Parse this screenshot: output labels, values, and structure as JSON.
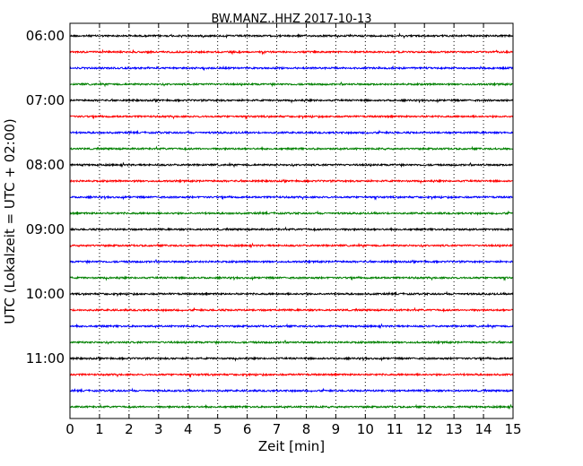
{
  "chart_data": {
    "type": "line",
    "title": "BW.MANZ..HHZ 2017-10-13",
    "xlabel": "Zeit  [min]",
    "ylabel": "UTC (Lokalzeit = UTC + 02:00)",
    "xlim": [
      0,
      15
    ],
    "x_ticks": [
      "0",
      "1",
      "2",
      "3",
      "4",
      "5",
      "6",
      "7",
      "8",
      "9",
      "10",
      "11",
      "12",
      "13",
      "14",
      "15"
    ],
    "y_ticks": [
      "06:00",
      "07:00",
      "08:00",
      "09:00",
      "10:00",
      "11:00"
    ],
    "grid": "vertical-dotted",
    "series_colors": [
      "#000000",
      "#ff0000",
      "#0000ff",
      "#008000"
    ],
    "traces": [
      {
        "start": "06:00",
        "color": "#000000"
      },
      {
        "start": "06:15",
        "color": "#ff0000"
      },
      {
        "start": "06:30",
        "color": "#0000ff"
      },
      {
        "start": "06:45",
        "color": "#008000"
      },
      {
        "start": "07:00",
        "color": "#000000"
      },
      {
        "start": "07:15",
        "color": "#ff0000"
      },
      {
        "start": "07:30",
        "color": "#0000ff"
      },
      {
        "start": "07:45",
        "color": "#008000"
      },
      {
        "start": "08:00",
        "color": "#000000"
      },
      {
        "start": "08:15",
        "color": "#ff0000"
      },
      {
        "start": "08:30",
        "color": "#0000ff"
      },
      {
        "start": "08:45",
        "color": "#008000"
      },
      {
        "start": "09:00",
        "color": "#000000"
      },
      {
        "start": "09:15",
        "color": "#ff0000"
      },
      {
        "start": "09:30",
        "color": "#0000ff"
      },
      {
        "start": "09:45",
        "color": "#008000"
      },
      {
        "start": "10:00",
        "color": "#000000"
      },
      {
        "start": "10:15",
        "color": "#ff0000"
      },
      {
        "start": "10:30",
        "color": "#0000ff"
      },
      {
        "start": "10:45",
        "color": "#008000"
      },
      {
        "start": "11:00",
        "color": "#000000"
      },
      {
        "start": "11:15",
        "color": "#ff0000"
      },
      {
        "start": "11:30",
        "color": "#0000ff"
      },
      {
        "start": "11:45",
        "color": "#008000"
      }
    ]
  }
}
